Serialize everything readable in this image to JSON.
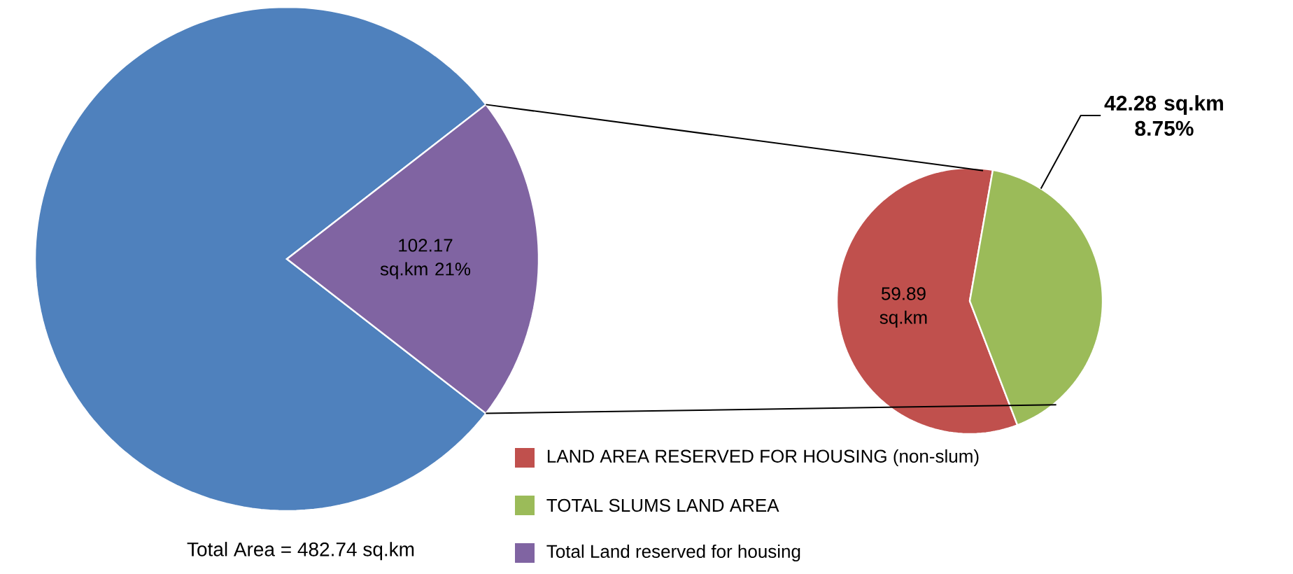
{
  "chart_data": [
    {
      "type": "pie",
      "categories": [
        null,
        "Total Land reserved for housing"
      ],
      "values": [
        79,
        21
      ],
      "colors": [
        "#4f81bd",
        "#8064a2"
      ],
      "value_labels": [
        null,
        "102.17 sq.km 21%"
      ],
      "annotations": [
        "Total Area = 482.74 sq.km"
      ],
      "legend": "bottom"
    },
    {
      "type": "pie",
      "categories": [
        "LAND AREA RESERVED FOR HOUSING (non-slum)",
        "TOTAL SLUMS LAND AREA"
      ],
      "values": [
        59.89,
        42.28
      ],
      "colors": [
        "#c0504d",
        "#9bbb59"
      ],
      "value_labels": [
        "59.89  sq.km",
        "42.28 sq.km 8.75%"
      ],
      "legend": "bottom"
    }
  ]
}
